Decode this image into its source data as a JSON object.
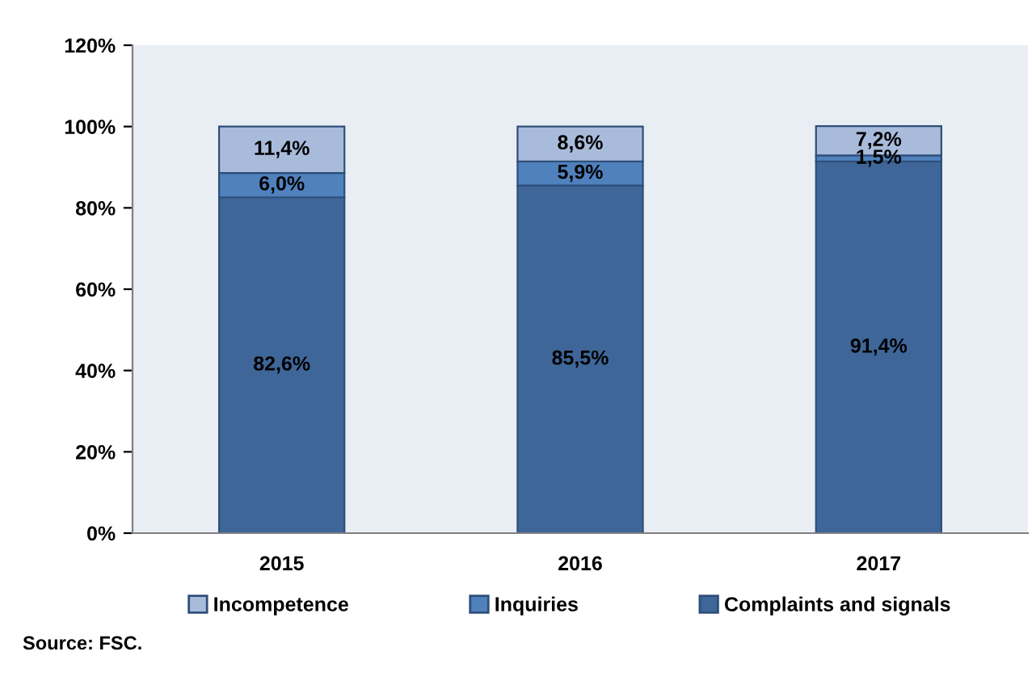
{
  "chart_data": {
    "type": "bar",
    "stacked": true,
    "categories": [
      "2015",
      "2016",
      "2017"
    ],
    "series": [
      {
        "name": "Complaints and signals",
        "color": "#3f6699",
        "values": [
          82.6,
          85.5,
          91.4
        ],
        "value_labels": [
          "82,6%",
          "85,5%",
          "91,4%"
        ]
      },
      {
        "name": "Inquiries",
        "color": "#4f81bd",
        "values": [
          6.0,
          5.9,
          1.5
        ],
        "value_labels": [
          "6,0%",
          "5,9%",
          "1,5%"
        ]
      },
      {
        "name": "Incompetence",
        "color": "#a9bbdb",
        "values": [
          11.4,
          8.6,
          7.2
        ],
        "value_labels": [
          "11,4%",
          "8,6%",
          "7,2%"
        ]
      }
    ],
    "ylim": [
      0,
      120
    ],
    "yticks": [
      {
        "value": 0,
        "label": "0%"
      },
      {
        "value": 20,
        "label": "20%"
      },
      {
        "value": 40,
        "label": "40%"
      },
      {
        "value": 60,
        "label": "60%"
      },
      {
        "value": 80,
        "label": "80%"
      },
      {
        "value": 100,
        "label": "100%"
      },
      {
        "value": 120,
        "label": "120%"
      }
    ],
    "grid": false,
    "legend": "bottom",
    "annotations": [
      "Source: FSC."
    ]
  }
}
